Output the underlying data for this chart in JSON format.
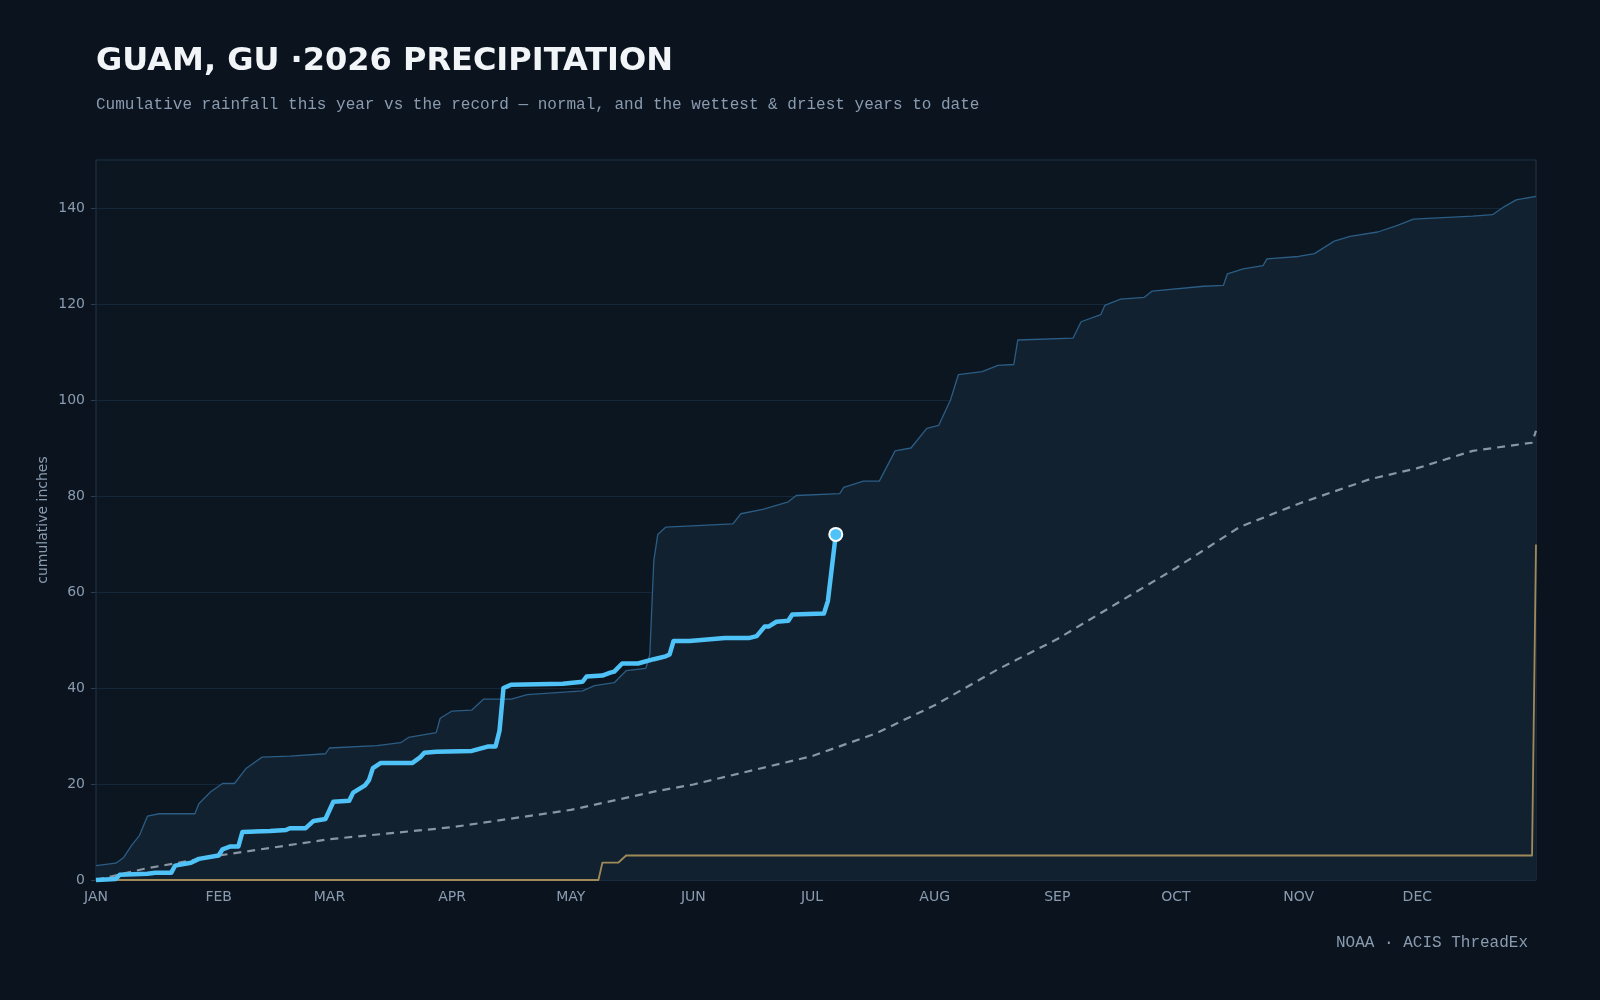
{
  "chart_data": {
    "type": "line",
    "title": "GUAM, GU ·2026 PRECIPITATION",
    "subtitle": "Cumulative rainfall this year vs the record — normal, and the wettest & driest years to date",
    "ylabel": "cumulative inches",
    "annotations": [
      "NOAA · ACIS ThreadEx"
    ],
    "xlim": [
      "--01-01",
      "--12-31"
    ],
    "xticks": [
      {
        "value": "--01-01",
        "label": "JAN"
      },
      {
        "value": "--02-01",
        "label": "FEB"
      },
      {
        "value": "--03-01",
        "label": "MAR"
      },
      {
        "value": "--04-01",
        "label": "APR"
      },
      {
        "value": "--05-01",
        "label": "MAY"
      },
      {
        "value": "--06-01",
        "label": "JUN"
      },
      {
        "value": "--07-01",
        "label": "JUL"
      },
      {
        "value": "--08-01",
        "label": "AUG"
      },
      {
        "value": "--09-01",
        "label": "SEP"
      },
      {
        "value": "--10-01",
        "label": "OCT"
      },
      {
        "value": "--11-01",
        "label": "NOV"
      },
      {
        "value": "--12-01",
        "label": "DEC"
      }
    ],
    "ylim": [
      0,
      150
    ],
    "yticks": [
      0,
      20,
      40,
      60,
      80,
      100,
      120,
      140
    ],
    "grid": "y",
    "legend": false,
    "marker": "none",
    "series": [
      {
        "type": "area",
        "color": "#2b5d85",
        "line_style": "solid",
        "x": [
          "--01-01",
          "--01-06",
          "--01-08",
          "--01-10",
          "--01-12",
          "--01-14",
          "--01-17",
          "--01-26",
          "--01-27",
          "--01-30",
          "--02-02",
          "--02-05",
          "--02-08",
          "--02-12",
          "--02-19",
          "--02-28",
          "--03-01",
          "--03-13",
          "--03-19",
          "--03-21",
          "--03-28",
          "--03-29",
          "--04-01",
          "--04-06",
          "--04-09",
          "--04-16",
          "--04-20",
          "--05-04",
          "--05-07",
          "--05-12",
          "--05-15",
          "--05-20",
          "--05-21",
          "--05-22",
          "--05-23",
          "--05-25",
          "--06-11",
          "--06-13",
          "--06-19",
          "--06-25",
          "--06-27",
          "--07-08",
          "--07-09",
          "--07-14",
          "--07-18",
          "--07-22",
          "--07-26",
          "--07-30",
          "--08-02",
          "--08-05",
          "--08-07",
          "--08-13",
          "--08-17",
          "--08-21",
          "--08-22",
          "--09-05",
          "--09-07",
          "--09-12",
          "--09-13",
          "--09-17",
          "--09-23",
          "--09-25",
          "--10-08",
          "--10-13",
          "--10-14",
          "--10-18",
          "--10-23",
          "--10-24",
          "--11-01",
          "--11-05",
          "--11-10",
          "--11-14",
          "--11-21",
          "--11-26",
          "--11-30",
          "--12-15",
          "--12-20",
          "--12-23",
          "--12-26",
          "--12-31"
        ],
        "values": [
          3.0,
          3.5,
          4.7,
          7.2,
          9.3,
          13.3,
          13.8,
          13.8,
          15.9,
          18.4,
          20.1,
          20.1,
          23.3,
          25.6,
          25.8,
          26.3,
          27.5,
          28.0,
          28.6,
          29.7,
          30.7,
          33.7,
          35.2,
          35.4,
          37.7,
          37.7,
          38.6,
          39.4,
          40.5,
          41.1,
          43.6,
          44.1,
          47.0,
          66.5,
          72.0,
          73.5,
          74.2,
          76.3,
          77.3,
          78.8,
          80.1,
          80.5,
          81.8,
          83.1,
          83.1,
          89.4,
          90.0,
          94.1,
          94.7,
          100.0,
          105.3,
          105.9,
          107.2,
          107.4,
          112.5,
          112.9,
          116.3,
          117.8,
          119.7,
          121.0,
          121.4,
          122.7,
          123.7,
          123.9,
          126.3,
          127.3,
          128.0,
          129.4,
          129.9,
          130.5,
          133.1,
          134.1,
          135.0,
          136.4,
          137.7,
          138.3,
          138.6,
          140.3,
          141.7,
          142.4
        ]
      },
      {
        "color": "#a08a5a",
        "line_style": "solid",
        "x": [
          "--01-01",
          "--05-08",
          "--05-09",
          "--05-13",
          "--05-15",
          "--12-30",
          "--12-31"
        ],
        "values": [
          0,
          0,
          3.6,
          3.6,
          5.1,
          5.1,
          69.9
        ]
      },
      {
        "color": "#8a96a3",
        "line_style": "dashed",
        "x": [
          "--01-01",
          "--01-13",
          "--02-01",
          "--03-01",
          "--04-01",
          "--05-01",
          "--05-22",
          "--06-01",
          "--07-01",
          "--07-17",
          "--08-01",
          "--08-17",
          "--09-01",
          "--09-16",
          "--10-01",
          "--10-17",
          "--11-01",
          "--11-19",
          "--12-01",
          "--12-15",
          "--12-30",
          "--12-31"
        ],
        "values": [
          0,
          2.3,
          5.1,
          8.5,
          11.0,
          14.6,
          18.4,
          19.9,
          25.8,
          30.5,
          36.4,
          43.9,
          50.2,
          57.6,
          65.0,
          73.5,
          78.4,
          83.5,
          85.8,
          89.4,
          91.1,
          93.6
        ]
      },
      {
        "color": "#4fc3f7",
        "line_style": "solid",
        "x": [
          "--01-01",
          "--01-06",
          "--01-07",
          "--01-14",
          "--01-16",
          "--01-20",
          "--01-21",
          "--01-25",
          "--01-27",
          "--02-01",
          "--02-02",
          "--02-04",
          "--02-06",
          "--02-07",
          "--02-14",
          "--02-18",
          "--02-19",
          "--02-23",
          "--02-25",
          "--02-28",
          "--03-02",
          "--03-06",
          "--03-07",
          "--03-10",
          "--03-11",
          "--03-12",
          "--03-14",
          "--03-22",
          "--03-24",
          "--03-25",
          "--03-28",
          "--04-06",
          "--04-10",
          "--04-12",
          "--04-13",
          "--04-14",
          "--04-16",
          "--04-29",
          "--05-04",
          "--05-05",
          "--05-09",
          "--05-11",
          "--05-12",
          "--05-14",
          "--05-18",
          "--05-22",
          "--05-25",
          "--05-26",
          "--05-27",
          "--05-31",
          "--06-09",
          "--06-15",
          "--06-17",
          "--06-19",
          "--06-20",
          "--06-22",
          "--06-25",
          "--06-26",
          "--07-04",
          "--07-05",
          "--07-07"
        ],
        "values": [
          0,
          0.2,
          1.1,
          1.3,
          1.5,
          1.5,
          3.0,
          3.6,
          4.4,
          5.1,
          6.4,
          7.0,
          7.0,
          10.0,
          10.2,
          10.4,
          10.8,
          10.8,
          12.3,
          12.7,
          16.3,
          16.5,
          18.2,
          19.7,
          20.8,
          23.3,
          24.4,
          24.4,
          25.6,
          26.5,
          26.7,
          26.9,
          27.8,
          27.8,
          31.1,
          40.0,
          40.7,
          40.9,
          41.3,
          42.4,
          42.6,
          43.2,
          43.4,
          45.1,
          45.1,
          46.0,
          46.6,
          47.0,
          49.8,
          49.8,
          50.4,
          50.4,
          50.8,
          52.8,
          52.8,
          53.8,
          54.0,
          55.3,
          55.5,
          58.1,
          72.0
        ]
      },
      {
        "type": "scatter",
        "color": "#4fc3f7",
        "marker": "circle",
        "x": [
          "--07-07"
        ],
        "values": [
          72.0
        ]
      }
    ]
  }
}
